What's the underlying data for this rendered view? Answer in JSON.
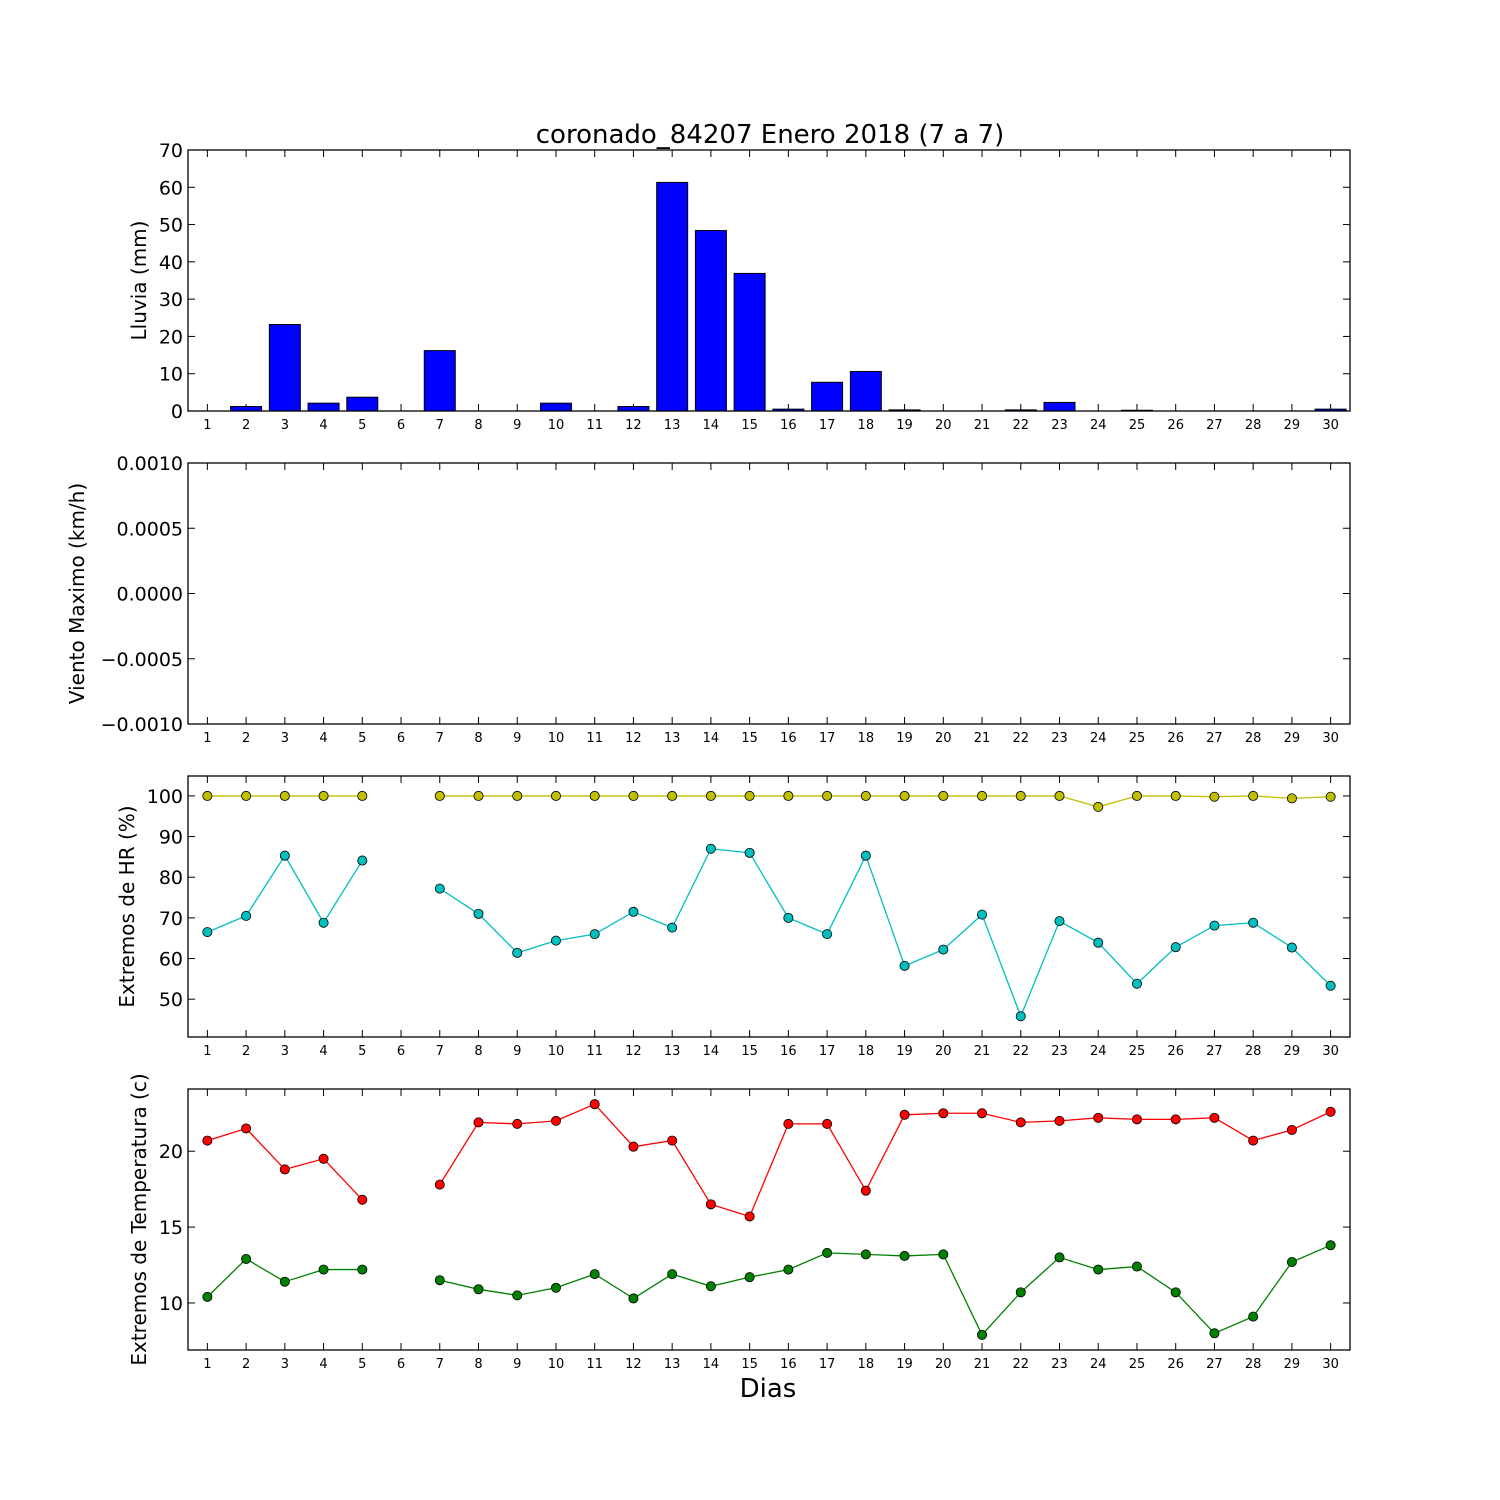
{
  "title": "coronado_84207 Enero 2018  (7 a 7)",
  "colors": {
    "bar": "#0000ff",
    "hr_max": "#bfbf00",
    "hr_min": "#00bfbf",
    "temp_max": "#ff0000",
    "temp_min": "#008000"
  },
  "chart_data": [
    {
      "type": "bar",
      "ylabel": "Lluvia (mm)",
      "xlabel": "",
      "categories": [
        1,
        2,
        3,
        4,
        5,
        6,
        7,
        8,
        9,
        10,
        11,
        12,
        13,
        14,
        15,
        16,
        17,
        18,
        19,
        20,
        21,
        22,
        23,
        24,
        25,
        26,
        27,
        28,
        29,
        30
      ],
      "values": [
        0,
        1.2,
        23.2,
        2.1,
        3.7,
        null,
        16.2,
        0,
        0,
        2.1,
        0,
        1.2,
        61.3,
        48.4,
        36.9,
        0.5,
        7.7,
        10.6,
        0.3,
        0,
        0,
        0.3,
        2.3,
        0,
        0.2,
        0,
        0,
        0,
        0,
        0.5
      ],
      "ylim": [
        0,
        70
      ],
      "yticks": [
        "0",
        "10",
        "20",
        "30",
        "40",
        "50",
        "60",
        "70"
      ],
      "grid": false
    },
    {
      "type": "line",
      "ylabel": "Viento Maximo (km/h)",
      "xlabel": "",
      "categories": [
        1,
        2,
        3,
        4,
        5,
        6,
        7,
        8,
        9,
        10,
        11,
        12,
        13,
        14,
        15,
        16,
        17,
        18,
        19,
        20,
        21,
        22,
        23,
        24,
        25,
        26,
        27,
        28,
        29,
        30
      ],
      "series": [],
      "ylim": [
        -0.001,
        0.001
      ],
      "yticks": [
        "−0.0010",
        "−0.0005",
        "0.0000",
        "0.0005",
        "0.0010"
      ],
      "grid": false
    },
    {
      "type": "line",
      "ylabel": "Extremos de HR (%)",
      "xlabel": "",
      "categories": [
        1,
        2,
        3,
        4,
        5,
        6,
        7,
        8,
        9,
        10,
        11,
        12,
        13,
        14,
        15,
        16,
        17,
        18,
        19,
        20,
        21,
        22,
        23,
        24,
        25,
        26,
        27,
        28,
        29,
        30
      ],
      "series": [
        {
          "values": [
            100,
            100,
            100,
            100,
            100,
            null,
            100,
            100,
            100,
            100,
            100,
            100,
            100,
            100,
            100,
            100,
            100,
            100,
            100,
            100,
            100,
            100,
            100,
            97.3,
            100,
            100,
            99.8,
            100,
            99.4,
            99.8
          ]
        },
        {
          "values": [
            66.5,
            70.5,
            85.3,
            68.8,
            84.1,
            null,
            77.2,
            71,
            61.4,
            64.4,
            66,
            71.5,
            67.6,
            87,
            86,
            70,
            66,
            85.3,
            58.2,
            62.2,
            70.8,
            45.8,
            69.2,
            63.9,
            53.8,
            62.8,
            68.1,
            68.8,
            62.7,
            53.3
          ]
        }
      ],
      "ylim": [
        40.7,
        104.9
      ],
      "yticks": [
        "50",
        "60",
        "70",
        "80",
        "90",
        "100"
      ],
      "grid": false
    },
    {
      "type": "line",
      "ylabel": "Extremos de Temperatura (c)",
      "xlabel": "Dias",
      "categories": [
        1,
        2,
        3,
        4,
        5,
        6,
        7,
        8,
        9,
        10,
        11,
        12,
        13,
        14,
        15,
        16,
        17,
        18,
        19,
        20,
        21,
        22,
        23,
        24,
        25,
        26,
        27,
        28,
        29,
        30
      ],
      "series": [
        {
          "values": [
            20.7,
            21.5,
            18.8,
            19.5,
            16.8,
            null,
            17.8,
            21.9,
            21.8,
            22,
            23.1,
            20.3,
            20.7,
            16.5,
            15.7,
            21.8,
            21.8,
            17.4,
            22.4,
            22.5,
            22.5,
            21.9,
            22,
            22.2,
            22.1,
            22.1,
            22.2,
            20.7,
            21.4,
            22.6
          ]
        },
        {
          "values": [
            10.4,
            12.9,
            11.4,
            12.2,
            12.2,
            null,
            11.5,
            10.9,
            10.5,
            11,
            11.9,
            10.3,
            11.9,
            11.1,
            11.7,
            12.2,
            13.3,
            13.2,
            13.1,
            13.2,
            7.9,
            10.7,
            13,
            12.2,
            12.4,
            10.7,
            8,
            9.1,
            12.7,
            13.8
          ]
        }
      ],
      "ylim": [
        6.9,
        24.1
      ],
      "yticks": [
        "10",
        "15",
        "20"
      ],
      "grid": false
    }
  ]
}
